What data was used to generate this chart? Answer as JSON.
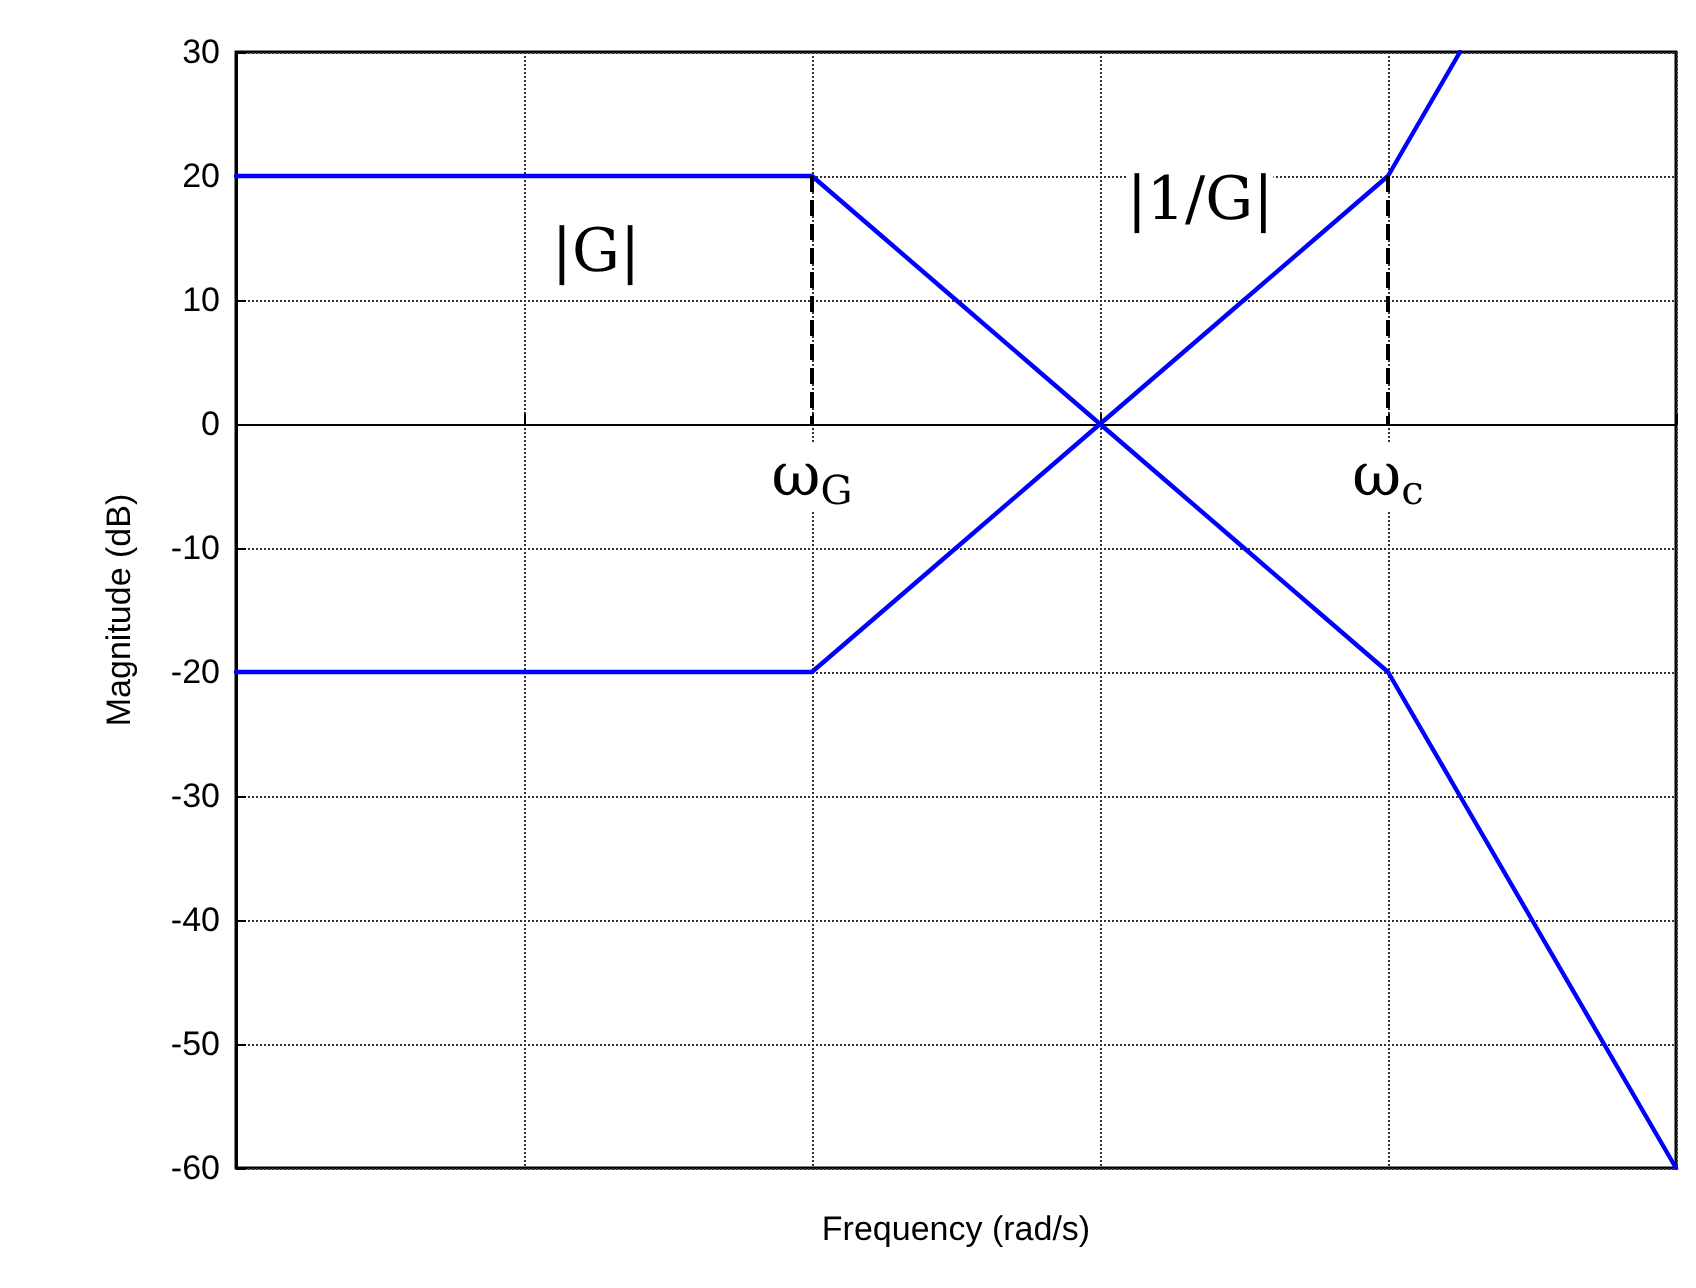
{
  "chart_data": {
    "type": "line",
    "xlabel": "Frequency (rad/s)",
    "ylabel": "Magnitude (dB)",
    "grid": true,
    "tick_labels": "y",
    "categories": [
      null,
      null,
      null,
      null,
      null,
      null,
      null,
      null,
      null,
      null,
      null,
      null,
      null,
      null,
      null,
      null,
      null,
      null,
      null,
      null,
      null
    ],
    "ylim": [
      -60,
      30
    ],
    "yticks": [
      -60,
      -50,
      -40,
      -30,
      -20,
      -10,
      0,
      10,
      20,
      30
    ],
    "series": [
      {
        "name": "|G|",
        "color": "#0000ff",
        "values": [
          20,
          20,
          20,
          20,
          20,
          20,
          20,
          20,
          20,
          15,
          10,
          5,
          0,
          -5,
          -10,
          -15,
          -20,
          -30,
          -40,
          -50,
          -60
        ]
      },
      {
        "name": "|1/G|",
        "color": "#0000ff",
        "values": [
          -20,
          -20,
          -20,
          -20,
          -20,
          -20,
          -20,
          -20,
          -20,
          -15,
          -10,
          -5,
          0,
          5,
          10,
          15,
          20,
          30,
          null,
          null,
          null
        ]
      }
    ],
    "annotations": [
      "ω$_{G}$",
      "ω$_{c}$"
    ]
  }
}
